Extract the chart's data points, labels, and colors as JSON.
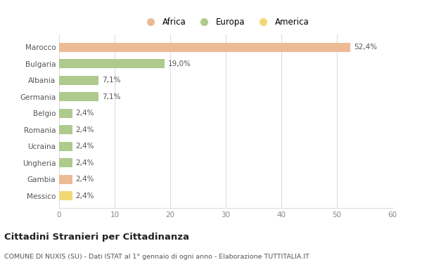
{
  "categories": [
    "Marocco",
    "Bulgaria",
    "Albania",
    "Germania",
    "Belgio",
    "Romania",
    "Ucraina",
    "Ungheria",
    "Gambia",
    "Messico"
  ],
  "values": [
    52.4,
    19.0,
    7.1,
    7.1,
    2.4,
    2.4,
    2.4,
    2.4,
    2.4,
    2.4
  ],
  "labels": [
    "52,4%",
    "19,0%",
    "7,1%",
    "7,1%",
    "2,4%",
    "2,4%",
    "2,4%",
    "2,4%",
    "2,4%",
    "2,4%"
  ],
  "colors": [
    "#EDBA96",
    "#AECA8C",
    "#AECA8C",
    "#AECA8C",
    "#AECA8C",
    "#AECA8C",
    "#AECA8C",
    "#AECA8C",
    "#EDBA96",
    "#F2D875"
  ],
  "legend": [
    {
      "label": "Africa",
      "color": "#EDBA96"
    },
    {
      "label": "Europa",
      "color": "#AECA8C"
    },
    {
      "label": "America",
      "color": "#F2D875"
    }
  ],
  "xlim": [
    0,
    60
  ],
  "xticks": [
    0,
    10,
    20,
    30,
    40,
    50,
    60
  ],
  "title": "Cittadini Stranieri per Cittadinanza",
  "subtitle": "COMUNE DI NUXIS (SU) - Dati ISTAT al 1° gennaio di ogni anno - Elaborazione TUTTITALIA.IT",
  "background_color": "#ffffff",
  "grid_color": "#dddddd"
}
